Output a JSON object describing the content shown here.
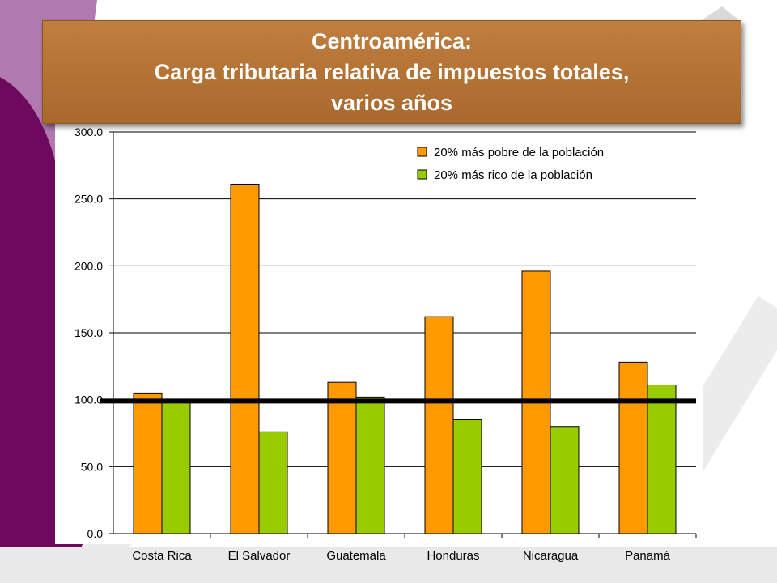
{
  "slide": {
    "title_lines": [
      "Centroamérica:",
      "Carga tributaria relativa de impuestos totales,",
      "varios años"
    ],
    "colors": {
      "sidebar_purple": "#6e0a5e",
      "sidebar_light": "#b07ab0",
      "title_fill": "#b5732f",
      "watermark": "#e6e6e6"
    }
  },
  "chart_data": {
    "type": "bar",
    "title": "",
    "xlabel": "",
    "ylabel": "",
    "categories": [
      "Costa Rica",
      "El Salvador",
      "Guatemala",
      "Honduras",
      "Nicaragua",
      "Panamá"
    ],
    "series": [
      {
        "name": "20% más pobre de la población",
        "color": "#ff9900",
        "values": [
          105,
          261,
          113,
          162,
          196,
          128
        ]
      },
      {
        "name": "20% más rico de la población",
        "color": "#99cc00",
        "values": [
          99,
          76,
          102,
          85,
          80,
          111
        ]
      }
    ],
    "ylim": [
      0,
      300
    ],
    "yticks": [
      "0.0",
      "50.0",
      "100.0",
      "150.0",
      "200.0",
      "250.0",
      "300.0"
    ],
    "grid": true,
    "legend_position": "top-right",
    "reference_line": {
      "value": 99,
      "color": "#000000"
    }
  }
}
